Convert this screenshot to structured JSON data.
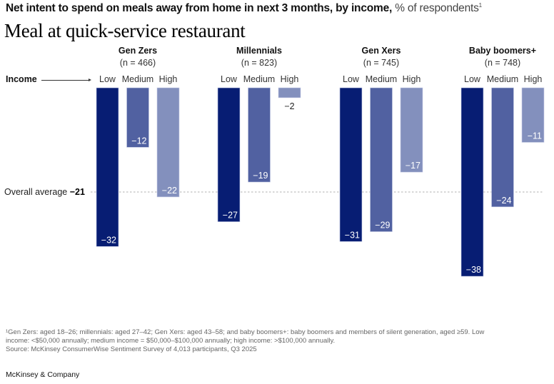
{
  "header": {
    "subtitle_bold": "Net intent to spend on meals away from home in next 3 months, by income,",
    "subtitle_unit": " % of respondents",
    "subtitle_footnote_mark": "1",
    "title": "Meal at quick-service restaurant"
  },
  "axis": {
    "income_label": "Income",
    "average_label": "Overall average",
    "average_value": "−21"
  },
  "colors": {
    "low": "#071d73",
    "medium": "#5161a1",
    "high": "#8390bd",
    "avg_line": "#b0b0b0",
    "value_label_inside": "#ffffff",
    "value_label_outside": "#222222"
  },
  "chart_data": {
    "type": "bar",
    "title": "Meal at quick-service restaurant",
    "subtitle": "Net intent to spend on meals away from home in next 3 months, by income, % of respondents",
    "xlabel": "Income",
    "ylabel": "% of respondents",
    "categories": [
      "Low",
      "Medium",
      "High"
    ],
    "groups": [
      {
        "name": "Gen Zers",
        "n_label": "(n = 466)",
        "values": [
          -32,
          -12,
          -22
        ]
      },
      {
        "name": "Millennials",
        "n_label": "(n = 823)",
        "values": [
          -27,
          -19,
          -2
        ]
      },
      {
        "name": "Gen Xers",
        "n_label": "(n = 745)",
        "values": [
          -31,
          -29,
          -17
        ]
      },
      {
        "name": "Baby boomers+",
        "n_label": "(n = 748)",
        "values": [
          -38,
          -24,
          -11
        ]
      }
    ],
    "series": [
      {
        "name": "Low",
        "values": [
          -32,
          -27,
          -31,
          -38
        ]
      },
      {
        "name": "Medium",
        "values": [
          -12,
          -19,
          -29,
          -24
        ]
      },
      {
        "name": "High",
        "values": [
          -22,
          -2,
          -17,
          -11
        ]
      }
    ],
    "reference_line": {
      "label": "Overall average",
      "value": -21
    },
    "ylim": [
      -40,
      0
    ],
    "grid": false,
    "legend": "none"
  },
  "footnote": {
    "line1": "¹Gen Zers: aged 18–26; millennials: aged 27–42; Gen Xers: aged 43–58; and baby boomers+: baby boomers and members of silent generation, aged ≥59. Low",
    "line2": " income: <$50,000 annually; medium income = $50,000–$100,000 annually; high income: >$100,000 annually.",
    "source": " Source: McKinsey ConsumerWise Sentiment Survey of 4,013 participants, Q3 2025"
  },
  "brand": "McKinsey & Company"
}
